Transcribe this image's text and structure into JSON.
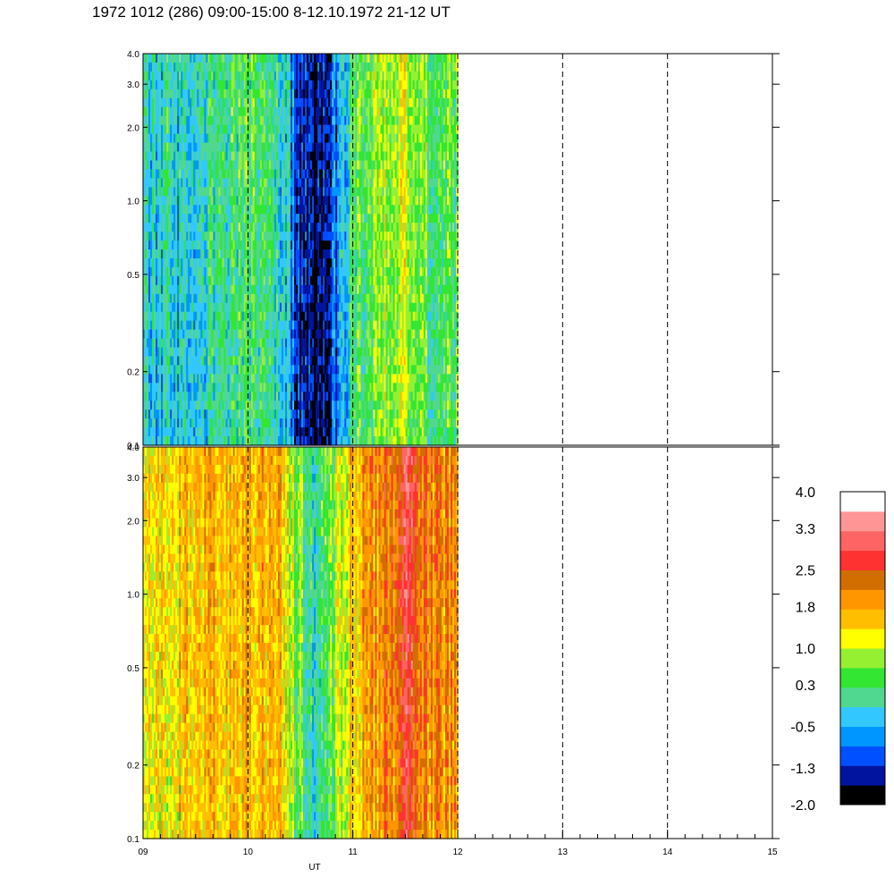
{
  "header": {
    "title": "1972 1012 (286) 09:00-15:00 8-12.10.1972  21-12 UT"
  },
  "chart_data": {
    "type": "heatmap",
    "title": "1972 1012 (286) 09:00-15:00 8-12.10.1972  21-12 UT",
    "xlabel": "UT",
    "xlim": [
      9,
      15
    ],
    "x_ticks": [
      "09",
      "10",
      "11",
      "12",
      "13",
      "14",
      "15"
    ],
    "x_tick_values": [
      9,
      10,
      11,
      12,
      13,
      14,
      15
    ],
    "data_end_hour": 12,
    "dashed_gridlines_at": [
      10,
      11,
      12,
      13,
      14
    ],
    "y_scale": "log",
    "ylim": [
      0.1,
      4.0
    ],
    "y_ticks": [
      "0.1",
      "0.2",
      "0.5",
      "1.0",
      "2.0",
      "3.0",
      "4.0"
    ],
    "y_tick_values": [
      0.1,
      0.2,
      0.5,
      1.0,
      2.0,
      3.0,
      4.0
    ],
    "panels": [
      {
        "id": "upper",
        "value_profile": [
          {
            "x": 9.0,
            "value": -0.3
          },
          {
            "x": 9.5,
            "value": -0.2
          },
          {
            "x": 9.9,
            "value": 0.2
          },
          {
            "x": 10.2,
            "value": 0.2
          },
          {
            "x": 10.4,
            "value": -0.5
          },
          {
            "x": 10.5,
            "value": -1.3
          },
          {
            "x": 10.65,
            "value": -1.7
          },
          {
            "x": 10.85,
            "value": -0.9
          },
          {
            "x": 11.0,
            "value": 0.3
          },
          {
            "x": 11.3,
            "value": 0.8
          },
          {
            "x": 11.5,
            "value": 1.1
          },
          {
            "x": 11.6,
            "value": 0.5
          },
          {
            "x": 12.0,
            "value": 0.4
          }
        ]
      },
      {
        "id": "lower",
        "value_profile": [
          {
            "x": 9.0,
            "value": 1.2
          },
          {
            "x": 9.5,
            "value": 1.6
          },
          {
            "x": 10.0,
            "value": 1.7
          },
          {
            "x": 10.3,
            "value": 1.6
          },
          {
            "x": 10.5,
            "value": 0.5
          },
          {
            "x": 10.65,
            "value": 0.0
          },
          {
            "x": 10.85,
            "value": 0.8
          },
          {
            "x": 11.0,
            "value": 1.6
          },
          {
            "x": 11.4,
            "value": 2.2
          },
          {
            "x": 11.5,
            "value": 3.2
          },
          {
            "x": 11.6,
            "value": 2.3
          },
          {
            "x": 12.0,
            "value": 1.9
          }
        ]
      }
    ],
    "colorbar": {
      "labels": [
        "4.0",
        "3.3",
        "2.5",
        "1.8",
        "1.0",
        "0.3",
        "-0.5",
        "-1.3",
        "-2.0"
      ],
      "label_values": [
        4.0,
        3.3,
        2.5,
        1.8,
        1.0,
        0.3,
        -0.5,
        -1.3,
        -2.0
      ],
      "range": [
        -2.0,
        4.0
      ],
      "colors": [
        "#000000",
        "#0014a0",
        "#0050ff",
        "#0096ff",
        "#32c8ff",
        "#50d890",
        "#32e632",
        "#96f032",
        "#ffff00",
        "#ffbe00",
        "#ff9600",
        "#d26e00",
        "#ff3232",
        "#ff6464",
        "#ff9696",
        "#ffffff"
      ]
    }
  }
}
